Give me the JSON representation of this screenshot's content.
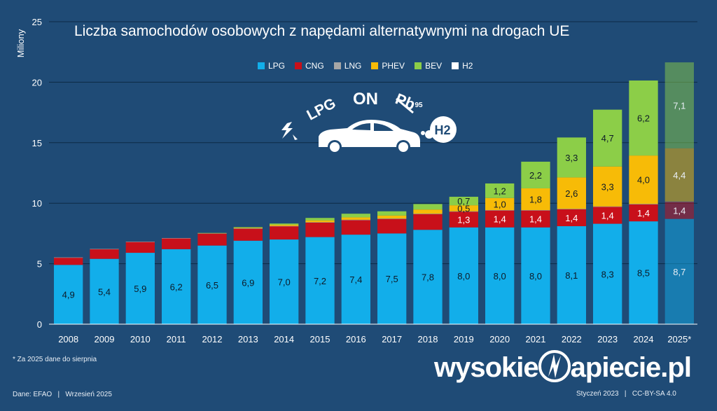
{
  "chart_data": {
    "type": "bar",
    "stacked": true,
    "title": "Liczba samochodów osobowych z napędami alternatywnymi na drogach UE",
    "ylabel": "Miliony",
    "ylim": [
      0,
      25
    ],
    "yticks": [
      0,
      5,
      10,
      15,
      20,
      25
    ],
    "grid": true,
    "legend_position": "top",
    "categories": [
      "2008",
      "2009",
      "2010",
      "2011",
      "2012",
      "2013",
      "2014",
      "2015",
      "2016",
      "2017",
      "2018",
      "2019",
      "2020",
      "2021",
      "2022",
      "2023",
      "2024",
      "2025*"
    ],
    "series": [
      {
        "name": "LPG",
        "color": "#12aeea",
        "values": [
          4.9,
          5.4,
          5.9,
          6.2,
          6.5,
          6.9,
          7.0,
          7.2,
          7.4,
          7.5,
          7.8,
          8.0,
          8.0,
          8.0,
          8.1,
          8.3,
          8.5,
          8.7
        ],
        "labels": [
          "4,9",
          "5,4",
          "5,9",
          "6,2",
          "6,5",
          "6,9",
          "7,0",
          "7,2",
          "7,4",
          "7,5",
          "7,8",
          "8,0",
          "8,0",
          "8,0",
          "8,1",
          "8,3",
          "8,5",
          "8,7"
        ]
      },
      {
        "name": "CNG",
        "color": "#c8101a",
        "values": [
          0.6,
          0.8,
          0.9,
          0.9,
          1.0,
          1.0,
          1.1,
          1.2,
          1.2,
          1.2,
          1.3,
          1.3,
          1.4,
          1.4,
          1.4,
          1.4,
          1.4,
          1.4
        ],
        "labels": [
          "",
          "",
          "",
          "",
          "",
          "",
          "",
          "",
          "",
          "",
          "",
          "1,3",
          "1,4",
          "1,4",
          "1,4",
          "1,4",
          "1,4",
          "1,4"
        ]
      },
      {
        "name": "LNG",
        "color": "#a6a6a6",
        "values": [
          0.02,
          0.02,
          0.02,
          0.02,
          0.02,
          0.02,
          0.02,
          0.03,
          0.03,
          0.03,
          0.03,
          0.03,
          0.03,
          0.03,
          0.03,
          0.03,
          0.04,
          0.04
        ],
        "labels": [
          "",
          "",
          "",
          "",
          "",
          "",
          "",
          "",
          "",
          "",
          "",
          "",
          "",
          "",
          "",
          "",
          "",
          ""
        ]
      },
      {
        "name": "PHEV",
        "color": "#f7bb07",
        "values": [
          0,
          0,
          0,
          0,
          0,
          0.05,
          0.1,
          0.15,
          0.2,
          0.25,
          0.35,
          0.5,
          1.0,
          1.8,
          2.6,
          3.3,
          4.0,
          4.4
        ],
        "labels": [
          "",
          "",
          "",
          "",
          "",
          "",
          "",
          "",
          "",
          "",
          "",
          "0,5",
          "1,0",
          "1,8",
          "2,6",
          "3,3",
          "4,0",
          "4,4"
        ]
      },
      {
        "name": "BEV",
        "color": "#8cce48",
        "values": [
          0,
          0,
          0,
          0,
          0.02,
          0.05,
          0.1,
          0.2,
          0.3,
          0.35,
          0.45,
          0.7,
          1.2,
          2.2,
          3.3,
          4.7,
          6.2,
          7.1
        ],
        "labels": [
          "",
          "",
          "",
          "",
          "",
          "",
          "",
          "",
          "",
          "",
          "",
          "0,7",
          "1,2",
          "2,2",
          "3,3",
          "4,7",
          "6,2",
          "7,1"
        ]
      },
      {
        "name": "H2",
        "color": "#ffffff",
        "values": [
          0,
          0,
          0,
          0,
          0,
          0,
          0,
          0,
          0,
          0,
          0,
          0,
          0,
          0,
          0,
          0,
          0,
          0
        ],
        "labels": [
          "",
          "",
          "",
          "",
          "",
          "",
          "",
          "",
          "",
          "",
          "",
          "",
          "",
          "",
          "",
          "",
          "",
          ""
        ]
      }
    ],
    "projected_categories": [
      "2025*"
    ]
  },
  "icons": [
    "lightning-icon",
    "lpg-text-icon",
    "on-text-icon",
    "pb95-text-icon",
    "car-icon",
    "h2-bubble-icon"
  ],
  "car_icon_text": {
    "lpg": "LPG",
    "on": "ON",
    "pb": "Pb",
    "pb_sup": "95",
    "h2": "H2"
  },
  "footnote": "* Za 2025 dane do sierpnia",
  "source": "Dane: EFAO   |   Wrzesień 2025",
  "brand": {
    "part1": "wysokie",
    "part2": "apiecie.pl"
  },
  "credit": "Styczeń 2023   |   CC-BY-SA 4.0",
  "colors": {
    "background": "#1f4b76",
    "grid": "#0d2a45"
  }
}
